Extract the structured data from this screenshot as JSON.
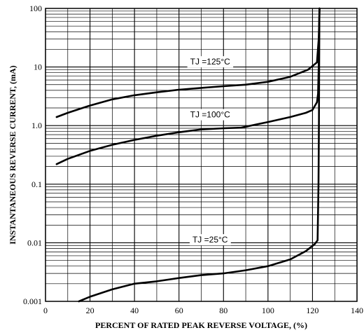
{
  "chart_data": {
    "type": "line",
    "title": "",
    "xlabel": "PERCENT OF RATED PEAK REVERSE VOLTAGE, (%)",
    "ylabel": "INSTANTANEOUS REVERSE CURRENT, (mA)",
    "xlim": [
      0,
      140
    ],
    "ylim": [
      0.001,
      100
    ],
    "yscale": "log",
    "grid": true,
    "x_ticks": [
      0,
      20,
      40,
      60,
      80,
      100,
      120,
      140
    ],
    "x_tick_labels": [
      "0",
      "20",
      "40",
      "60",
      "80",
      "100",
      "120",
      "140"
    ],
    "y_ticks": [
      0.001,
      0.01,
      0.1,
      1,
      10,
      100
    ],
    "y_tick_labels": [
      "0.001",
      "0.01",
      "0.1",
      "1.0",
      "10",
      "100"
    ],
    "series": [
      {
        "name": "TJ =125°C",
        "label_at": [
          74,
          12
        ],
        "points": [
          [
            5,
            1.4
          ],
          [
            10,
            1.65
          ],
          [
            20,
            2.2
          ],
          [
            30,
            2.8
          ],
          [
            40,
            3.3
          ],
          [
            50,
            3.7
          ],
          [
            60,
            4.1
          ],
          [
            70,
            4.4
          ],
          [
            80,
            4.7
          ],
          [
            90,
            5.0
          ],
          [
            100,
            5.6
          ],
          [
            110,
            6.8
          ],
          [
            118,
            9.0
          ],
          [
            122,
            12.0
          ],
          [
            122.8,
            30
          ],
          [
            123.2,
            100
          ]
        ]
      },
      {
        "name": "TJ =100°C",
        "label_at": [
          74,
          1.5
        ],
        "points": [
          [
            5,
            0.22
          ],
          [
            10,
            0.27
          ],
          [
            20,
            0.37
          ],
          [
            30,
            0.47
          ],
          [
            40,
            0.57
          ],
          [
            50,
            0.67
          ],
          [
            60,
            0.77
          ],
          [
            70,
            0.86
          ],
          [
            80,
            0.9
          ],
          [
            88,
            0.92
          ],
          [
            95,
            1.05
          ],
          [
            100,
            1.15
          ],
          [
            110,
            1.4
          ],
          [
            117,
            1.65
          ],
          [
            120,
            1.85
          ],
          [
            122,
            2.5
          ],
          [
            122.5,
            3.5
          ],
          [
            122.8,
            10
          ],
          [
            123.1,
            100
          ]
        ]
      },
      {
        "name": "TJ =25°C",
        "label_at": [
          74,
          0.011
        ],
        "points": [
          [
            15,
            0.001
          ],
          [
            20,
            0.0012
          ],
          [
            30,
            0.0016
          ],
          [
            40,
            0.002
          ],
          [
            50,
            0.0022
          ],
          [
            60,
            0.0025
          ],
          [
            70,
            0.0028
          ],
          [
            80,
            0.003
          ],
          [
            90,
            0.0034
          ],
          [
            100,
            0.004
          ],
          [
            110,
            0.0052
          ],
          [
            117,
            0.0072
          ],
          [
            121,
            0.0095
          ],
          [
            122.3,
            0.011
          ],
          [
            122.7,
            0.1
          ],
          [
            122.9,
            1
          ],
          [
            123.1,
            100
          ]
        ]
      }
    ]
  }
}
